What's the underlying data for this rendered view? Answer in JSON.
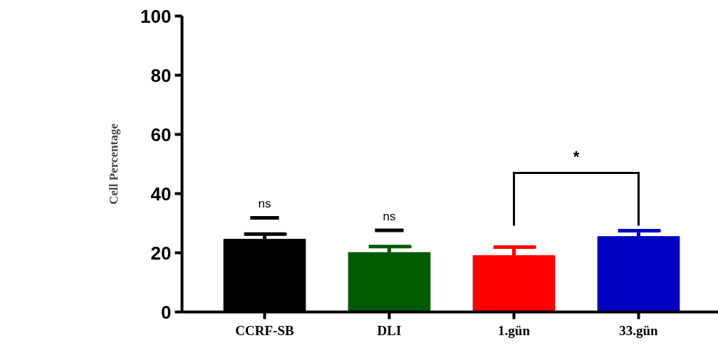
{
  "chart_data": {
    "type": "bar",
    "ylabel": "Cell Percentage",
    "categories": [
      "CCRF-SB",
      "DLI",
      "1.gün",
      "33.gün"
    ],
    "values": [
      24.6,
      20.1,
      19.1,
      25.5
    ],
    "colors": [
      "#000000",
      "#005a00",
      "#ff0000",
      "#0000c0"
    ],
    "errors": [
      [
        24.6,
        26.3
      ],
      [
        20.1,
        22.1
      ],
      [
        19.1,
        21.9
      ],
      [
        25.5,
        27.5
      ]
    ],
    "ylim": [
      0,
      100
    ],
    "yticks": [
      0,
      20,
      40,
      60,
      80,
      100
    ],
    "grid": false,
    "annotations": [
      "ns",
      "ns",
      "*"
    ]
  }
}
